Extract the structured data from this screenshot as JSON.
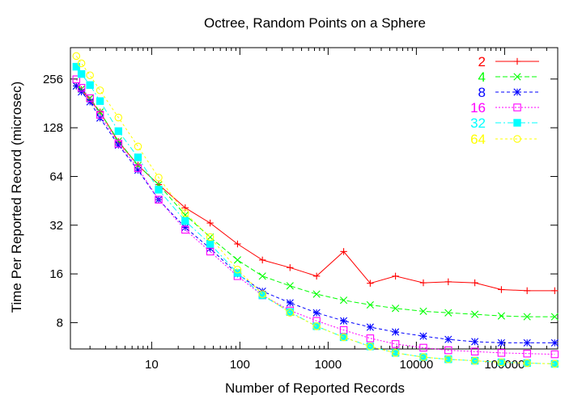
{
  "chart_data": {
    "type": "line",
    "title": "Octree, Random Points on a Sphere",
    "xlabel": "Number of Reported Records",
    "ylabel": "Time Per Reported Record (microsec)",
    "x_scale": "log",
    "y_scale": "log2",
    "xlim": [
      1.2,
      400000
    ],
    "ylim": [
      5.5,
      400
    ],
    "x_ticks": [
      10,
      100,
      1000,
      10000,
      100000
    ],
    "x_tick_labels": [
      "10",
      "100",
      "1000",
      "10000",
      "100000"
    ],
    "y_ticks": [
      8,
      16,
      32,
      64,
      128,
      256
    ],
    "y_tick_labels": [
      "8",
      "16",
      "32",
      "64",
      "128",
      "256"
    ],
    "grid": false,
    "legend_position": "top-right",
    "x": [
      1.4,
      1.6,
      2,
      2.6,
      4.2,
      7,
      12,
      24,
      46,
      94,
      180,
      370,
      740,
      1500,
      3000,
      5800,
      12000,
      23000,
      46000,
      92000,
      180000,
      370000
    ],
    "series": [
      {
        "name": "2",
        "color": "#ff0000",
        "marker": "plus",
        "values": [
          232,
          220,
          190,
          160,
          105,
          75,
          57,
          41,
          33,
          24.5,
          19.5,
          17.5,
          15.5,
          22,
          14,
          15.5,
          14.1,
          14.3,
          14.1,
          12.8,
          12.6,
          12.6
        ]
      },
      {
        "name": "4",
        "color": "#00ff00",
        "marker": "x",
        "values": [
          232,
          222,
          195,
          160,
          106,
          75,
          57,
          37,
          27,
          19.5,
          15.5,
          13.5,
          12,
          11,
          10.3,
          9.8,
          9.4,
          9.2,
          9.0,
          8.8,
          8.7,
          8.7
        ]
      },
      {
        "name": "8",
        "color": "#0000ff",
        "marker": "asterisk",
        "values": [
          232,
          213,
          185,
          147,
          100,
          70,
          46,
          31,
          23,
          16,
          12.5,
          10.6,
          9.2,
          8.2,
          7.5,
          7.0,
          6.6,
          6.3,
          6.1,
          6.0,
          6.0,
          6.0
        ]
      },
      {
        "name": "16",
        "color": "#ff00ff",
        "marker": "open-square",
        "values": [
          255,
          226,
          195,
          154,
          102,
          72,
          46,
          30,
          22,
          15.5,
          11.8,
          9.5,
          8.2,
          7.2,
          6.4,
          5.9,
          5.6,
          5.4,
          5.3,
          5.2,
          5.15,
          5.1
        ]
      },
      {
        "name": "32",
        "color": "#00ffff",
        "marker": "filled-square",
        "values": [
          305,
          275,
          235,
          187,
          122,
          84,
          53,
          34,
          24.5,
          16.2,
          11.8,
          9.3,
          7.6,
          6.5,
          5.7,
          5.2,
          4.9,
          4.75,
          4.65,
          4.55,
          4.5,
          4.45
        ]
      },
      {
        "name": "64",
        "color": "#ffff00",
        "marker": "open-circle",
        "values": [
          355,
          320,
          270,
          218,
          148,
          98,
          63,
          38,
          27,
          17,
          12,
          9.2,
          7.6,
          6.5,
          5.7,
          5.2,
          4.9,
          4.75,
          4.65,
          4.55,
          4.5,
          4.45
        ]
      }
    ]
  }
}
